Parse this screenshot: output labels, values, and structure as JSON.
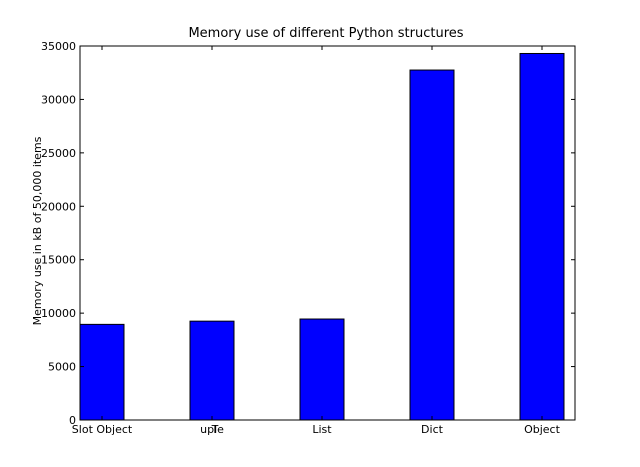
{
  "chart_data": {
    "type": "bar",
    "title": "Memory use of different Python structures",
    "xlabel": "",
    "ylabel": "Memory use in kB of 50,000 items",
    "categories": [
      "Slot Object",
      "uple",
      "List",
      "Dict",
      "Object"
    ],
    "category_extra_glyph": {
      "index": 1,
      "text": "T"
    },
    "values": [
      8950,
      9250,
      9450,
      32750,
      34300
    ],
    "ylim": [
      0,
      35000
    ],
    "yticks": [
      0,
      5000,
      10000,
      15000,
      20000,
      25000,
      30000,
      35000
    ],
    "ytick_labels": [
      "0",
      "5000",
      "10000",
      "15000",
      "20000",
      "25000",
      "30000",
      "35000"
    ],
    "bar_color": "#0000ff",
    "grid": false,
    "legend": null
  }
}
